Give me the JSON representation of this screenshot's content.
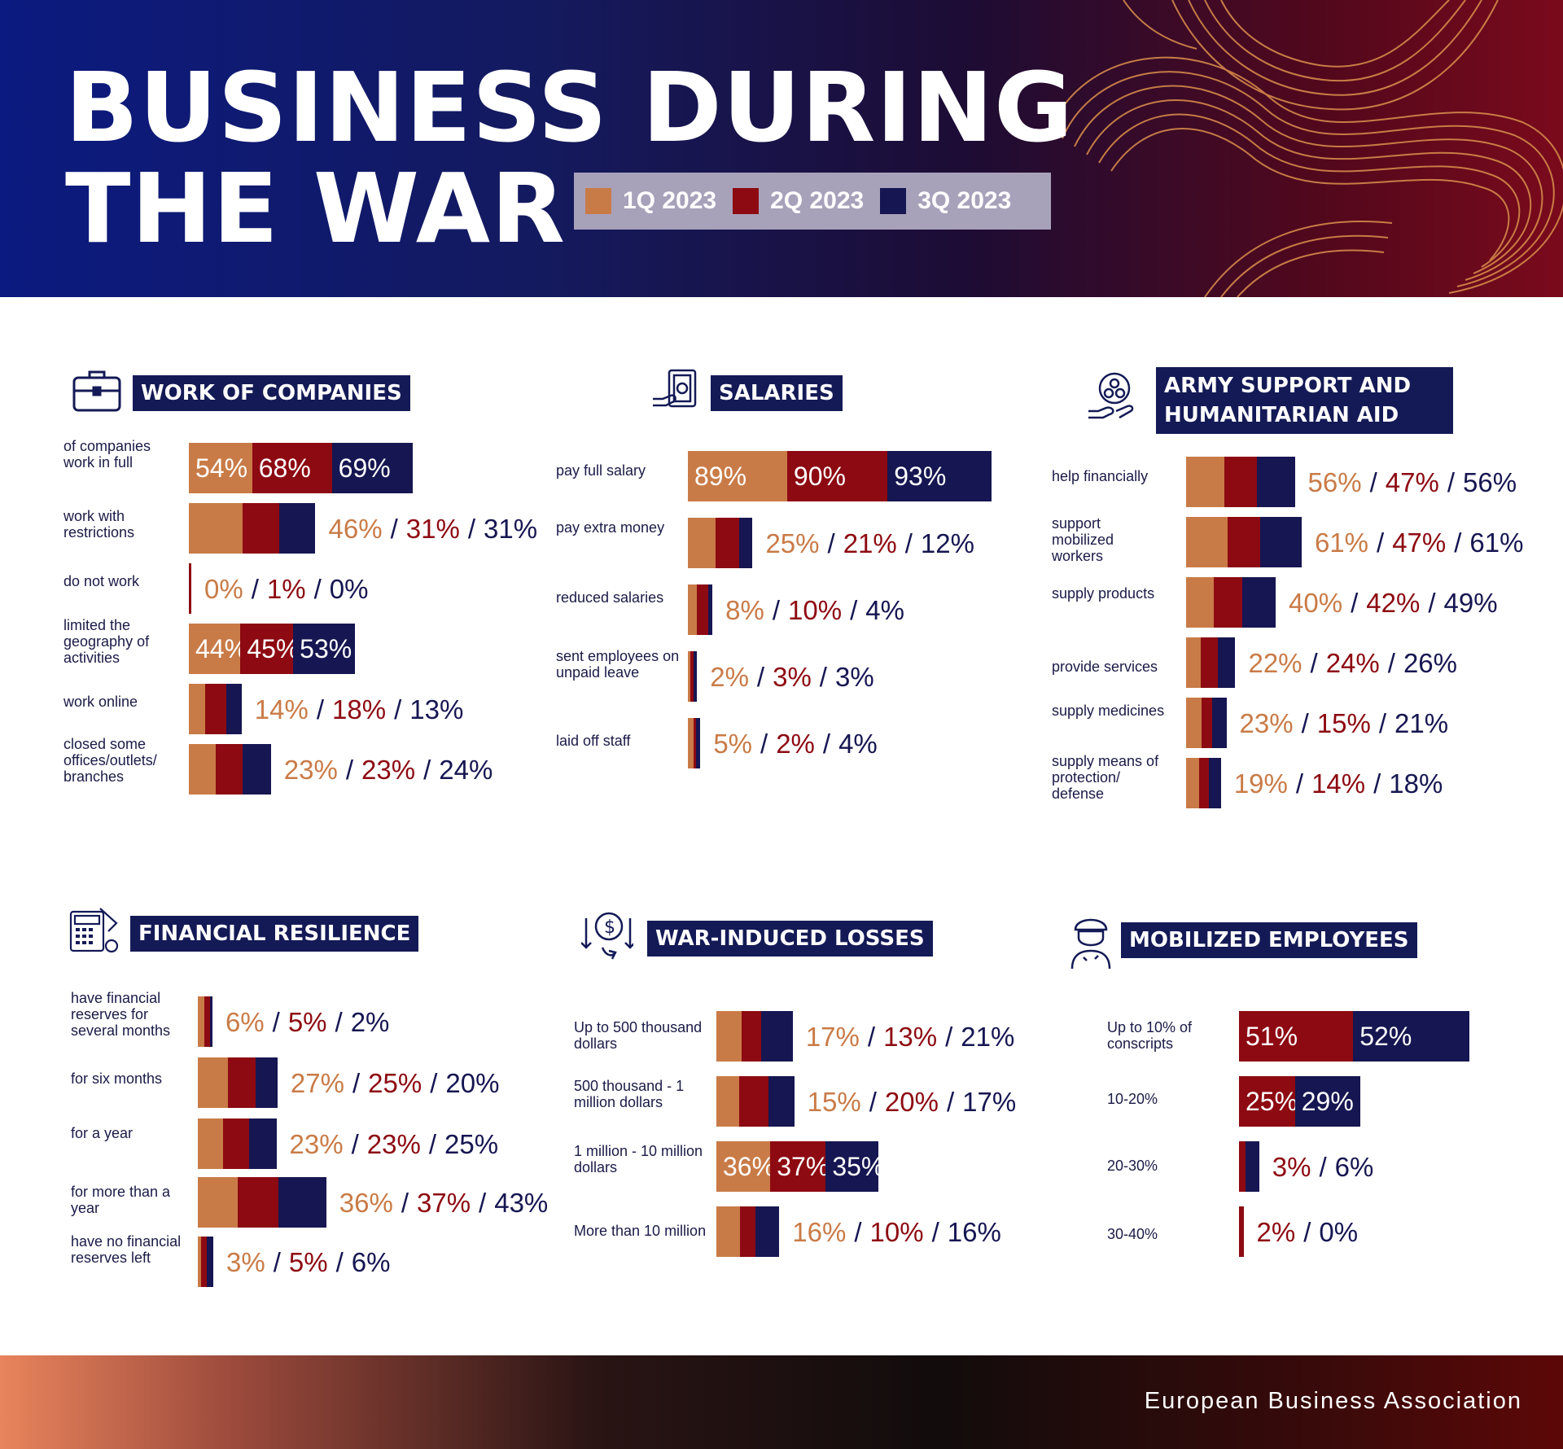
{
  "title": {
    "line1": "BUSINESS DURING",
    "line2": "THE WAR"
  },
  "legend": [
    {
      "label": "1Q 2023",
      "color": "#c97b47"
    },
    {
      "label": "2Q 2023",
      "color": "#8d0a12"
    },
    {
      "label": "3Q 2023",
      "color": "#161652"
    }
  ],
  "footer": {
    "org": "European Business Association"
  },
  "chart_data": [
    {
      "type": "bar",
      "title": "WORK OF COMPANIES",
      "icon": "briefcase-icon",
      "series_names": [
        "1Q 2023",
        "2Q 2023",
        "3Q 2023"
      ],
      "categories": [
        "of companies work in full",
        "work with restrictions",
        "do not work",
        "limited the geography of activities",
        "work online",
        "closed some offices/outlets/ branches"
      ],
      "values": [
        [
          54,
          68,
          69
        ],
        [
          46,
          31,
          31
        ],
        [
          0,
          1,
          0
        ],
        [
          44,
          45,
          53
        ],
        [
          14,
          18,
          13
        ],
        [
          23,
          23,
          24
        ]
      ]
    },
    {
      "type": "bar",
      "title": "SALARIES",
      "icon": "salary-icon",
      "series_names": [
        "1Q 2023",
        "2Q 2023",
        "3Q 2023"
      ],
      "categories": [
        "pay full salary",
        "pay extra money",
        "reduced salaries",
        "sent employees on unpaid leave",
        "laid off staff"
      ],
      "values": [
        [
          89,
          90,
          93
        ],
        [
          25,
          21,
          12
        ],
        [
          8,
          10,
          4
        ],
        [
          2,
          3,
          3
        ],
        [
          5,
          2,
          4
        ]
      ]
    },
    {
      "type": "bar",
      "title": "ARMY SUPPORT AND HUMANITARIAN AID",
      "icon": "aid-icon",
      "series_names": [
        "1Q 2023",
        "2Q 2023",
        "3Q 2023"
      ],
      "categories": [
        "help financially",
        "support mobilized workers",
        "supply products",
        "provide services",
        "supply medicines",
        "supply means of protection/ defense"
      ],
      "values": [
        [
          56,
          47,
          56
        ],
        [
          61,
          47,
          61
        ],
        [
          40,
          42,
          49
        ],
        [
          22,
          24,
          26
        ],
        [
          23,
          15,
          21
        ],
        [
          19,
          14,
          18
        ]
      ]
    },
    {
      "type": "bar",
      "title": "FINANCIAL RESILIENCE",
      "icon": "calculator-icon",
      "series_names": [
        "1Q 2023",
        "2Q 2023",
        "3Q 2023"
      ],
      "categories": [
        "have financial reserves for several months",
        "for six months",
        "for a year",
        "for more than a year",
        "have no financial reserves left"
      ],
      "values": [
        [
          6,
          5,
          2
        ],
        [
          27,
          25,
          20
        ],
        [
          23,
          23,
          25
        ],
        [
          36,
          37,
          43
        ],
        [
          3,
          5,
          6
        ]
      ]
    },
    {
      "type": "bar",
      "title": "WAR-INDUCED LOSSES",
      "icon": "losses-icon",
      "series_names": [
        "1Q 2023",
        "2Q 2023",
        "3Q 2023"
      ],
      "categories": [
        "Up to 500 thousand dollars",
        "500 thousand - 1 million dollars",
        "1 million - 10 million dollars",
        "More than 10 million"
      ],
      "values": [
        [
          17,
          13,
          21
        ],
        [
          15,
          20,
          17
        ],
        [
          36,
          37,
          35
        ],
        [
          16,
          10,
          16
        ]
      ]
    },
    {
      "type": "bar",
      "title": "MOBILIZED EMPLOYEES",
      "icon": "soldier-icon",
      "series_names": [
        "2Q 2023",
        "3Q 2023"
      ],
      "categories": [
        "Up to 10% of conscripts",
        "10-20%",
        "20-30%",
        "30-40%"
      ],
      "values": [
        [
          51,
          52
        ],
        [
          25,
          29
        ],
        [
          3,
          6
        ],
        [
          2,
          0
        ]
      ]
    }
  ]
}
